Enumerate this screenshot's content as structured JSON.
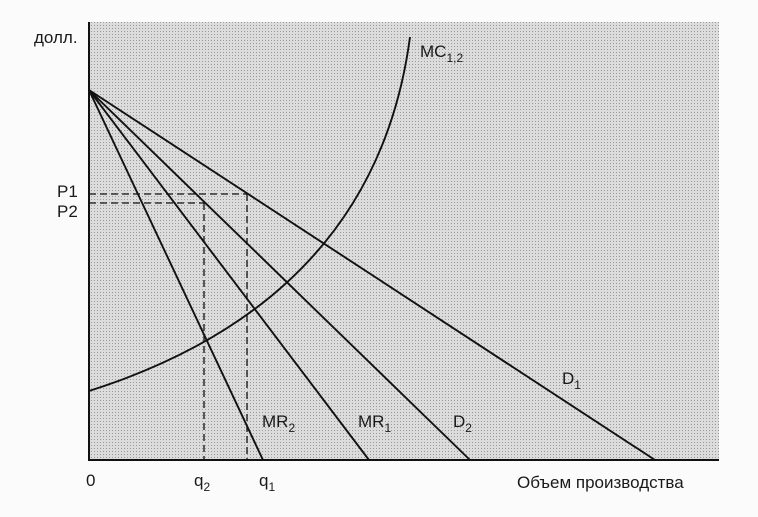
{
  "labels": {
    "y_axis": "долл.",
    "x_axis": "Объем производства",
    "origin": "0",
    "p1": "P1",
    "p2": "P2",
    "q1": {
      "base": "q",
      "sub": "1"
    },
    "q2": {
      "base": "q",
      "sub": "2"
    },
    "mc": {
      "base": "MC",
      "sub": "1,2"
    },
    "d1": {
      "base": "D",
      "sub": "1"
    },
    "d2": {
      "base": "D",
      "sub": "2"
    },
    "mr1": {
      "base": "MR",
      "sub": "1"
    },
    "mr2": {
      "base": "MR",
      "sub": "2"
    }
  },
  "colors": {
    "plot_background": "#d9d9d9",
    "ink": "#111111",
    "paper": "#fbfbfb"
  }
}
